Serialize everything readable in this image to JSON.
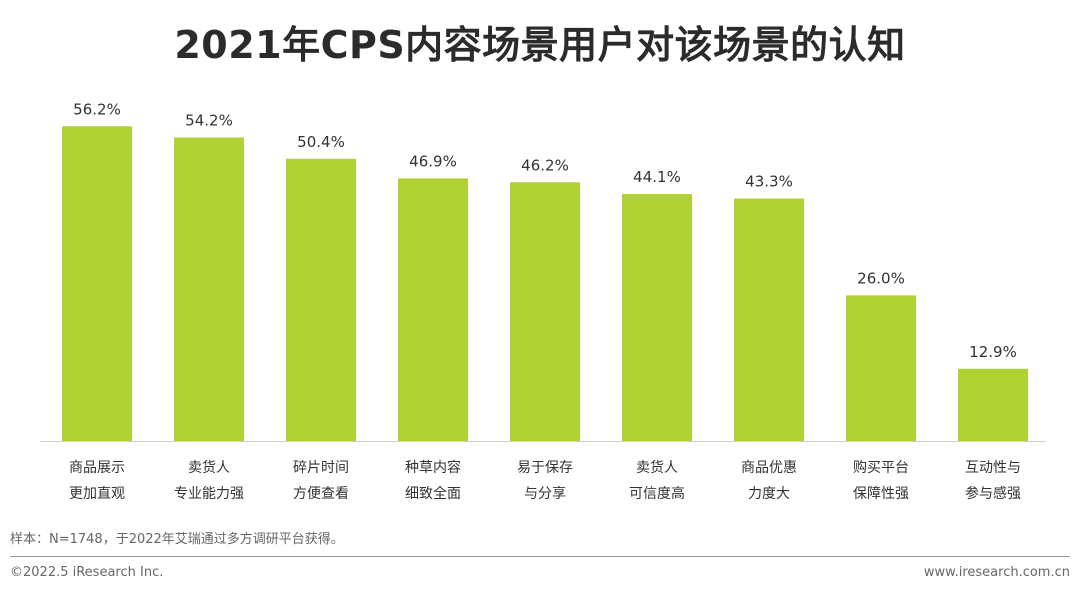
{
  "header": {
    "title": "2021年CPS内容场景用户对该场景的认知"
  },
  "footnote": "样本：N=1748，于2022年艾瑞通过多方调研平台获得。",
  "footer": {
    "copyright": "©2022.5 iResearch Inc.",
    "website": "www.iresearch.com.cn"
  },
  "colors": {
    "bar": "#b0d235",
    "axis": "#d0d0d0",
    "label": "#333333"
  },
  "chart_data": {
    "type": "bar",
    "title": "2021年CPS内容场景用户对该场景的认知",
    "xlabel": "",
    "ylabel": "",
    "ylim": [
      0,
      60
    ],
    "grid": false,
    "legend": "none",
    "unit": "%",
    "categories": [
      [
        "商品展示",
        "更加直观"
      ],
      [
        "卖货人",
        "专业能力强"
      ],
      [
        "碎片时间",
        "方便查看"
      ],
      [
        "种草内容",
        "细致全面"
      ],
      [
        "易于保存",
        "与分享"
      ],
      [
        "卖货人",
        "可信度高"
      ],
      [
        "商品优惠",
        "力度大"
      ],
      [
        "购买平台",
        "保障性强"
      ],
      [
        "互动性与",
        "参与感强"
      ]
    ],
    "values": [
      56.2,
      54.2,
      50.4,
      46.9,
      46.2,
      44.1,
      43.3,
      26.0,
      12.9
    ],
    "value_labels": [
      "56.2%",
      "54.2%",
      "50.4%",
      "46.9%",
      "46.2%",
      "44.1%",
      "43.3%",
      "26.0%",
      "12.9%"
    ]
  }
}
